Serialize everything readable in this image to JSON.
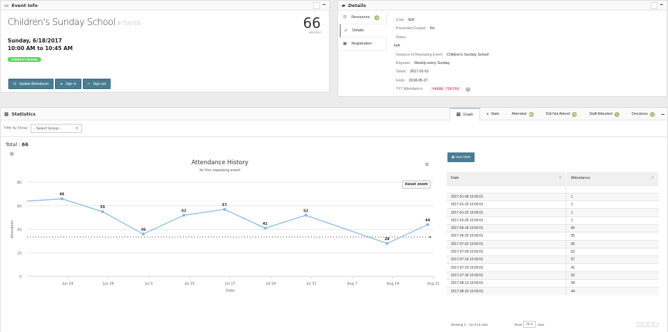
{
  "event_info": {
    "header": "Event Info",
    "title": "Children's Sunday School",
    "event_id": "#756766",
    "attended_count": "66",
    "attended_label": "attended",
    "date_line": "Sunday, 6/18/2017",
    "time_line": "10:00 AM to 10:45 AM",
    "tag": "Children's Events",
    "buttons": {
      "update": "Update Attendance",
      "sign_in": "Sign in",
      "sign_out": "Sign out"
    }
  },
  "details": {
    "header": "Details",
    "tabs": [
      {
        "label": "Resources",
        "badge": "0"
      },
      {
        "label": "Details"
      },
      {
        "label": "Registration"
      }
    ],
    "fields": {
      "cost_k": "Cost:",
      "cost_v": "N/A",
      "gospel_k": "Presented Gospel:",
      "gospel_v": "No",
      "notes_k": "Notes:",
      "notes_v": "N/A",
      "instance_k": "Instance of Repeating Event:",
      "instance_v": "Children's Sunday School",
      "repeats_k": "Repeats:",
      "repeats_v": "Weekly every Sunday",
      "starts_k": "Starts:",
      "starts_v": "2017-01-01",
      "ends_k": "Ends:",
      "ends_v": "2018-05-27",
      "txt_k": "TXT Attendance:",
      "txt_v": "#HERE 756766"
    }
  },
  "statistics": {
    "header": "Statistics",
    "tabs": [
      {
        "label": "Graph"
      },
      {
        "label": "Stats"
      },
      {
        "label": "Attended",
        "badge": "66"
      },
      {
        "label": "Did Not Attend",
        "badge": "76"
      },
      {
        "label": "Staff Attended",
        "badge": "1"
      },
      {
        "label": "Decisions",
        "badge": "0"
      }
    ],
    "filter_label": "Filter by Group:",
    "filter_value": "- Select Group -",
    "total_label": "Total :",
    "total_value": "66",
    "reset_zoom": "Reset zoom",
    "view_table": "View Table",
    "table": {
      "headers": [
        "Date",
        "Attendance"
      ],
      "rows": [
        [
          "2017-01-08 10:00:01",
          "1"
        ],
        [
          "2017-01-15 10:00:01",
          "1"
        ],
        [
          "2017-01-22 10:00:01",
          "1"
        ],
        [
          "2017-02-05 10:00:01",
          "1"
        ],
        [
          "2017-06-18 10:00:01",
          "66"
        ],
        [
          "2017-06-25 10:00:01",
          "55"
        ],
        [
          "2017-07-02 10:00:01",
          "36"
        ],
        [
          "2017-07-09 10:00:01",
          "52"
        ],
        [
          "2017-07-16 10:00:01",
          "57"
        ],
        [
          "2017-07-23 10:00:01",
          "41"
        ],
        [
          "2017-07-30 10:00:01",
          "52"
        ],
        [
          "2017-08-13 10:00:01",
          "28"
        ],
        [
          "2017-08-20 10:00:01",
          "44"
        ]
      ],
      "showing": "Showing 1 – 13 of 13 rows",
      "show_label": "Show",
      "show_value": "All",
      "rows_label": "rows"
    }
  },
  "chart_data": {
    "type": "line",
    "title": "Attendance History",
    "subtitle": "for this repeating event",
    "xlabel": "Date",
    "ylabel": "Attendees",
    "ylim": [
      0,
      80
    ],
    "yticks": [
      0,
      20,
      40,
      60,
      80
    ],
    "xticks": [
      "Jun 19",
      "Jun 26",
      "Jul 3",
      "Jul 10",
      "Jul 17",
      "Jul 24",
      "Jul 31",
      "Aug 7",
      "Aug 14",
      "Aug 21"
    ],
    "x": [
      "2017-06-18",
      "2017-06-25",
      "2017-07-02",
      "2017-07-09",
      "2017-07-16",
      "2017-07-23",
      "2017-07-30",
      "2017-08-13",
      "2017-08-20"
    ],
    "values": [
      66,
      55,
      36,
      52,
      57,
      41,
      52,
      28,
      44
    ],
    "average_line": 33.4,
    "grid": true,
    "color": "#7cb5ec"
  }
}
